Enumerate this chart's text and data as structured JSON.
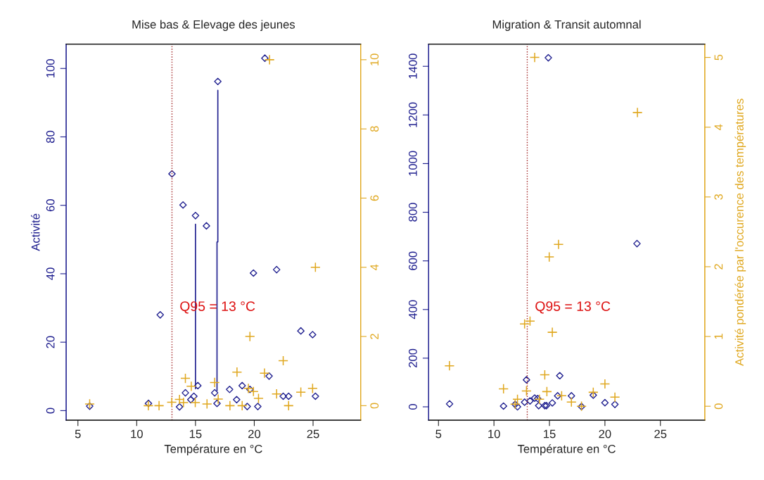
{
  "chart_data": [
    {
      "type": "scatter",
      "title": "Mise bas & Elevage des jeunes",
      "xlabel": "Température en °C",
      "ylabel": "Activité",
      "xlim": [
        4,
        29.05
      ],
      "xticks": [
        5,
        10,
        15,
        20,
        25
      ],
      "ylim": [
        -2.8,
        107.1
      ],
      "yticks": [
        0,
        20,
        40,
        60,
        80,
        100
      ],
      "y2lim": [
        -0.42,
        10.45
      ],
      "y2ticks": [
        0,
        2,
        4,
        6,
        8,
        10
      ],
      "grid": false,
      "legend": false,
      "ref_lines": [
        {
          "axis": "x",
          "value": 13,
          "color": "#a02020",
          "line_style": "dotted",
          "label": "Q95 = 13 °C"
        }
      ],
      "series": [
        {
          "type": "scatter",
          "axis": "y",
          "color": "#1f1f8f",
          "marker": "diamond",
          "x": [
            6,
            20.9,
            16.9,
            13,
            13.94,
            15,
            15.93,
            12,
            11,
            13.64,
            14.14,
            14.6,
            14.86,
            15.2,
            16.63,
            16.83,
            17.9,
            18.5,
            18.97,
            19.93,
            21.9,
            23.96,
            24.96,
            21.26,
            19.63,
            22.46,
            22.92,
            25.2,
            19.4,
            20.3
          ],
          "values": [
            1.3,
            103,
            96.2,
            69.2,
            60.1,
            57,
            54,
            28,
            2.1,
            1.1,
            5.2,
            3.2,
            4.2,
            7.3,
            5.2,
            2.1,
            6.2,
            3.2,
            7.3,
            40.2,
            41.2,
            23.3,
            22.2,
            10.1,
            6.2,
            4.2,
            4.2,
            4.2,
            1.2,
            1.2
          ]
        },
        {
          "type": "line",
          "axis": "y",
          "color": "#1f1f8f",
          "marker": "none",
          "line_style": "solid",
          "x": [
            15,
            15,
            null,
            16.9,
            16.9,
            16.83,
            16.83
          ],
          "values": [
            54.5,
            6.4,
            null,
            93.6,
            49.3,
            49.3,
            5.8
          ]
        },
        {
          "type": "scatter",
          "axis": "y2",
          "color": "#e0a820",
          "marker": "cross",
          "x": [
            6,
            14.14,
            14.64,
            16.63,
            18.53,
            16.93,
            10.99,
            11.9,
            12.98,
            13.64,
            13.98,
            14.98,
            15.98,
            17.93,
            18.97,
            25.2,
            19.63,
            22.46,
            20.87,
            19.93,
            19.5,
            20.36,
            21.9,
            23.96,
            24.96,
            22.92,
            21.3
          ],
          "values": [
            0.05,
            0.79,
            0.56,
            0.67,
            0.97,
            0.19,
            0,
            0,
            0.1,
            0.18,
            0.09,
            0.09,
            0.05,
            0,
            0,
            4,
            2,
            1.3,
            0.94,
            0.41,
            0.5,
            0.21,
            0.34,
            0.39,
            0.5,
            0,
            10
          ]
        }
      ]
    },
    {
      "type": "scatter",
      "title": "Migration & Transit automnal",
      "xlabel": "Température en °C",
      "y2label": "Activité pondérée par l'occurence des températures",
      "xlim": [
        4.11,
        29
      ],
      "xticks": [
        5,
        10,
        15,
        20,
        25
      ],
      "ylim": [
        -55,
        1491
      ],
      "yticks": [
        0,
        200,
        400,
        600,
        800,
        1000,
        1200,
        1400
      ],
      "y2lim": [
        -0.2,
        5.19
      ],
      "y2ticks": [
        0,
        1,
        2,
        3,
        4,
        5
      ],
      "grid": false,
      "legend": false,
      "ref_lines": [
        {
          "axis": "x",
          "value": 13,
          "color": "#a02020",
          "line_style": "dotted",
          "label": "Q95 = 13 °C"
        }
      ],
      "series": [
        {
          "type": "scatter",
          "axis": "y",
          "color": "#1f1f8f",
          "marker": "diamond",
          "x": [
            6,
            10.86,
            11.91,
            12.12,
            12.76,
            12.93,
            13.25,
            13.67,
            13.94,
            14.03,
            14.58,
            14.73,
            15.26,
            15.93,
            15.74,
            16.98,
            17.89,
            18.95,
            20,
            20.9,
            22.89,
            14.9
          ],
          "values": [
            12,
            3,
            10,
            0,
            19,
            111,
            24,
            36,
            34,
            5,
            5,
            5,
            16,
            128,
            45,
            45,
            1,
            48,
            17,
            10,
            671,
            1435
          ]
        },
        {
          "type": "scatter",
          "axis": "y2",
          "color": "#e0a820",
          "marker": "cross",
          "x": [
            13.67,
            22.93,
            15.82,
            14.98,
            12.76,
            13.25,
            15.26,
            5.99,
            10.86,
            12.93,
            14.58,
            14.77,
            12.12,
            11.91,
            14.1,
            16.1,
            16.98,
            20,
            20.9,
            17.89,
            18.95
          ],
          "values": [
            5,
            4.21,
            2.32,
            2.14,
            1.18,
            1.22,
            1.06,
            0.58,
            0.25,
            0.22,
            0.45,
            0.21,
            0.1,
            0.03,
            0.1,
            0.15,
            0.06,
            0.32,
            0.13,
            0,
            0.2
          ]
        }
      ]
    }
  ]
}
